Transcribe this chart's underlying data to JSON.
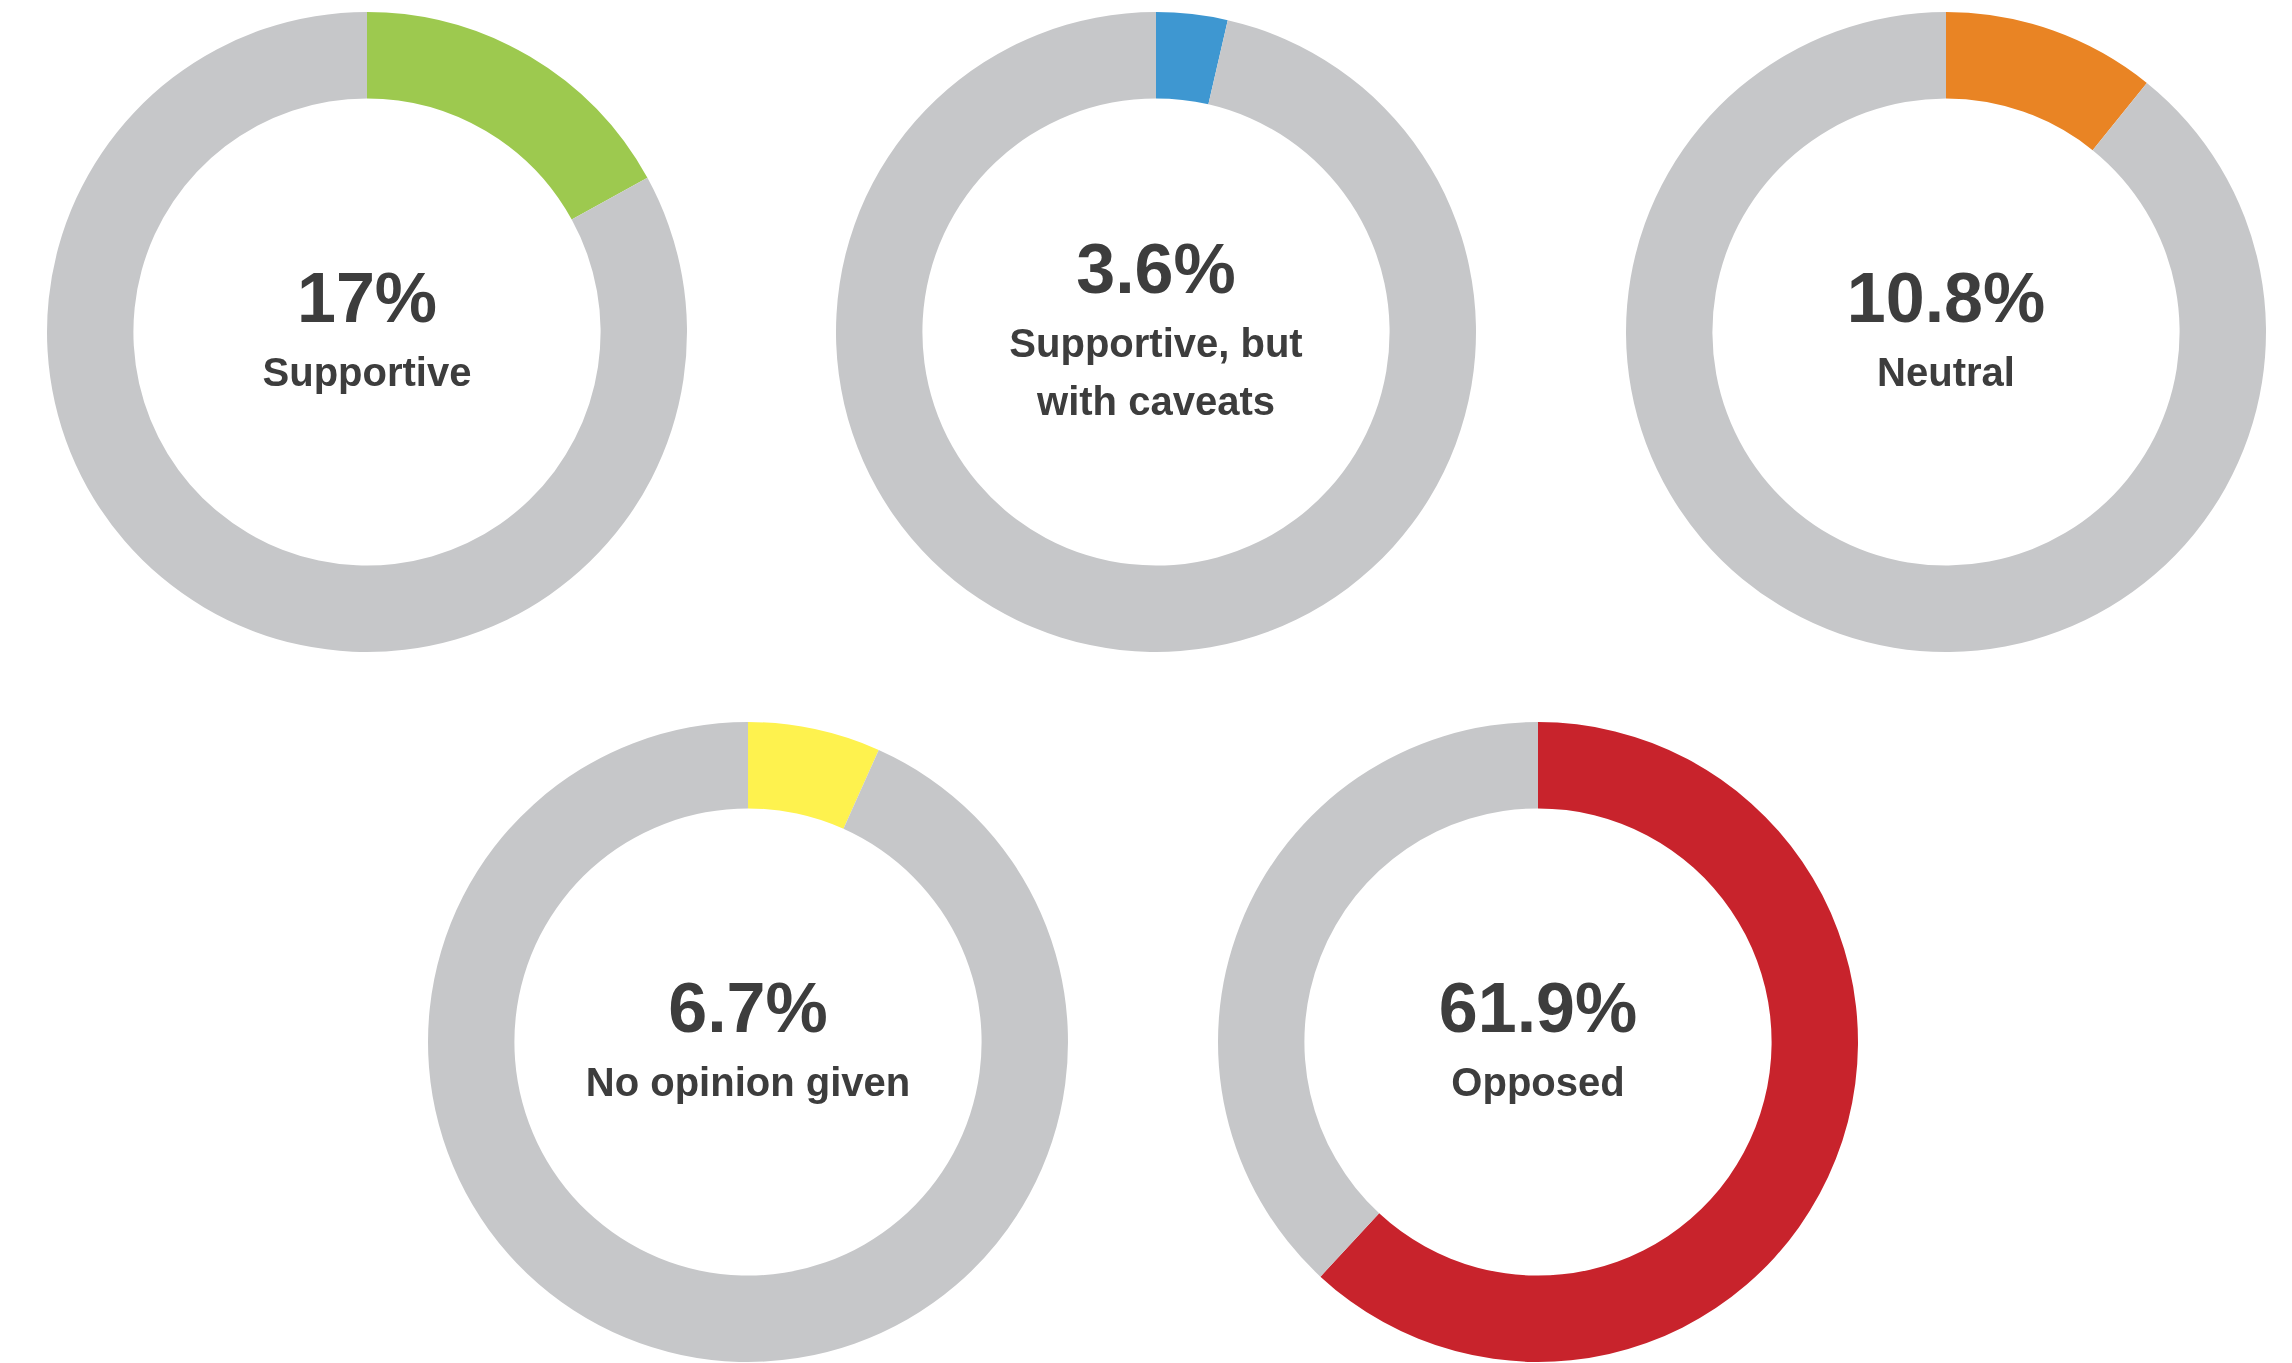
{
  "chart_data": [
    {
      "type": "donut",
      "categories": [
        "Supportive",
        null
      ],
      "values": [
        17,
        83
      ],
      "colors": [
        "#9dc94f",
        "#c6c7c9"
      ],
      "value_labels": [
        "17%",
        null
      ]
    },
    {
      "type": "donut",
      "categories": [
        "Supportive, but with caveats",
        null
      ],
      "values": [
        3.6,
        96.4
      ],
      "colors": [
        "#3e97d1",
        "#c6c7c9"
      ],
      "value_labels": [
        "3.6%",
        null
      ]
    },
    {
      "type": "donut",
      "categories": [
        "Neutral",
        null
      ],
      "values": [
        10.8,
        89.2
      ],
      "colors": [
        "#e98424",
        "#c6c7c9"
      ],
      "value_labels": [
        "10.8%",
        null
      ]
    },
    {
      "type": "donut",
      "categories": [
        "No opinion given",
        null
      ],
      "values": [
        6.7,
        93.3
      ],
      "colors": [
        "#fef24e",
        "#c6c7c9"
      ],
      "value_labels": [
        "6.7%",
        null
      ]
    },
    {
      "type": "donut",
      "categories": [
        "Opposed",
        null
      ],
      "values": [
        61.9,
        38.1
      ],
      "colors": [
        "#c8232c",
        "#c6c7c9"
      ],
      "value_labels": [
        "61.9%",
        null
      ]
    }
  ]
}
